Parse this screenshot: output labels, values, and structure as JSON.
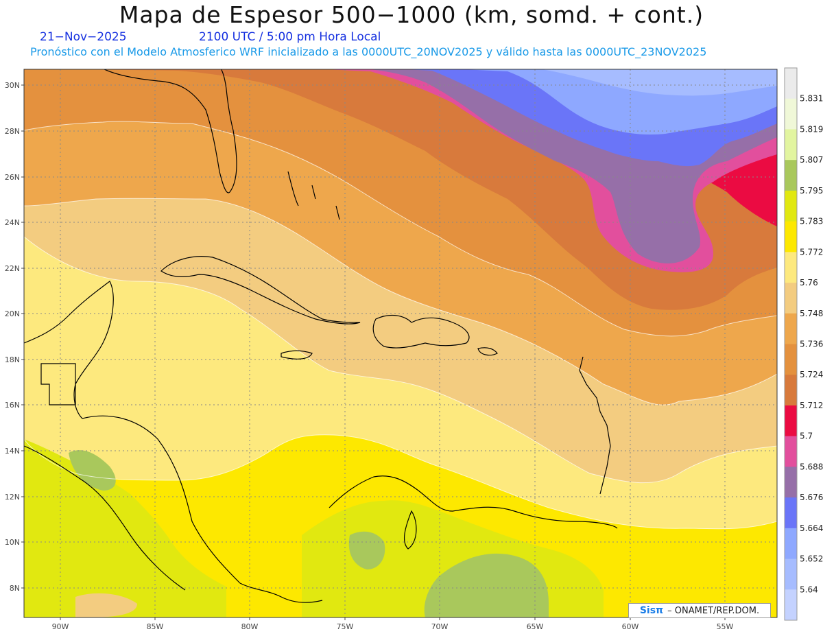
{
  "header": {
    "title": "Mapa de Espesor 500−1000 (km, somd. + cont.)",
    "date": "21−Nov−2025",
    "time": "2100 UTC / 5:00 pm Hora Local",
    "model_info": "Pronóstico con el Modelo Atmosferico WRF inicializado a las 0000UTC_20NOV2025 y válido hasta las  0000UTC_23NOV2025"
  },
  "map": {
    "lon_range": [
      -92,
      -52.5
    ],
    "lat_range": [
      6.7,
      30.7
    ],
    "lat_ticks": [
      "30N",
      "28N",
      "26N",
      "24N",
      "22N",
      "20N",
      "18N",
      "16N",
      "14N",
      "12N",
      "10N",
      "8N"
    ],
    "lon_ticks": [
      "90W",
      "85W",
      "80W",
      "75W",
      "70W",
      "65W",
      "60W",
      "55W"
    ],
    "gridlines": true
  },
  "colorbar": {
    "labels": [
      "5.64",
      "5.652",
      "5.664",
      "5.676",
      "5.688",
      "5.7",
      "5.712",
      "5.724",
      "5.736",
      "5.748",
      "5.76",
      "5.772",
      "5.783",
      "5.795",
      "5.807",
      "5.819",
      "5.831"
    ],
    "colors": [
      "#c4d2ff",
      "#a6bcff",
      "#8ea8ff",
      "#6a75f8",
      "#966fa8",
      "#e24f9d",
      "#eb0b42",
      "#d87a3c",
      "#e4913e",
      "#eea74c",
      "#f3cc80",
      "#fde97e",
      "#fde800",
      "#e1e810",
      "#a9c85c",
      "#e2f5a0",
      "#f0f8d8",
      "#ebebeb"
    ]
  },
  "footer": {
    "logo": "Sisπ",
    "credit": "– ONAMET/REP.DOM."
  }
}
